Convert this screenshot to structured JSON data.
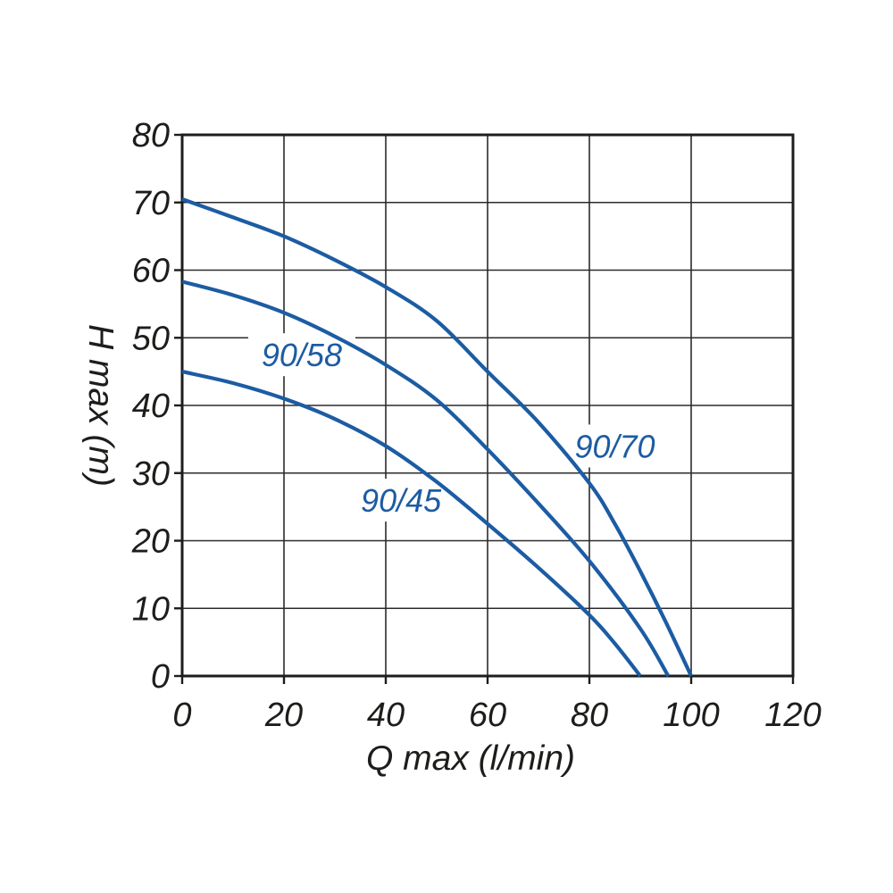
{
  "chart_data": {
    "type": "line",
    "title": "",
    "xlabel": "Q max (l/min)",
    "ylabel": "H max (m)",
    "xlim": [
      0,
      120
    ],
    "ylim": [
      0,
      80
    ],
    "xticks": [
      0,
      20,
      40,
      60,
      80,
      100,
      120
    ],
    "yticks": [
      0,
      10,
      20,
      30,
      40,
      50,
      60,
      70,
      80
    ],
    "grid": true,
    "legend_position": "inline-curve-labels",
    "line_color": "#1c5ca3",
    "label_color": "#1c5ca3",
    "axis_color": "#1d1d1b",
    "grid_color": "#2b2b2b",
    "series": [
      {
        "name": "90/70",
        "label_at": {
          "x": 85,
          "y": 34
        },
        "points": [
          [
            0,
            70.5
          ],
          [
            10,
            67.8
          ],
          [
            20,
            65
          ],
          [
            30,
            61.5
          ],
          [
            40,
            57.5
          ],
          [
            50,
            52.5
          ],
          [
            60,
            45
          ],
          [
            70,
            37.5
          ],
          [
            80,
            28.5
          ],
          [
            85,
            22.5
          ],
          [
            90,
            15.5
          ],
          [
            95,
            8
          ],
          [
            100,
            0
          ]
        ]
      },
      {
        "name": "90/58",
        "label_at": {
          "x": 23.5,
          "y": 47.5
        },
        "points": [
          [
            0,
            58.3
          ],
          [
            10,
            56.3
          ],
          [
            20,
            53.7
          ],
          [
            30,
            50.2
          ],
          [
            40,
            46
          ],
          [
            50,
            40.8
          ],
          [
            60,
            33.5
          ],
          [
            70,
            25.5
          ],
          [
            80,
            17
          ],
          [
            90,
            7
          ],
          [
            95.5,
            0
          ]
        ]
      },
      {
        "name": "90/45",
        "label_at": {
          "x": 43,
          "y": 26
        },
        "points": [
          [
            0,
            45
          ],
          [
            10,
            43.3
          ],
          [
            20,
            41
          ],
          [
            30,
            38
          ],
          [
            40,
            34
          ],
          [
            50,
            28.7
          ],
          [
            60,
            22.5
          ],
          [
            70,
            16
          ],
          [
            80,
            9
          ],
          [
            85,
            4.8
          ],
          [
            90,
            0
          ]
        ]
      }
    ]
  }
}
